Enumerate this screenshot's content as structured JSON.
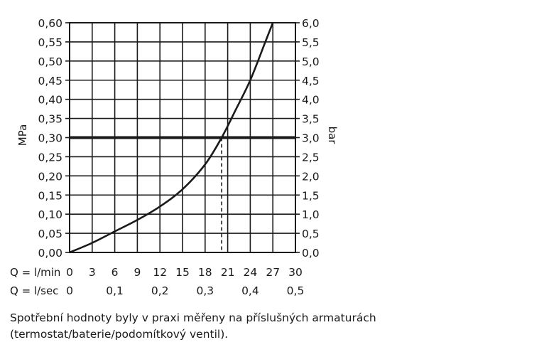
{
  "chart_data": {
    "type": "line",
    "ylabel_left": "MPa",
    "ylabel_right": "bar",
    "ylim": [
      0,
      0.6
    ],
    "left_ticks": [
      "0,00",
      "0,05",
      "0,10",
      "0,15",
      "0,20",
      "0,25",
      "0,30",
      "0,35",
      "0,40",
      "0,45",
      "0,50",
      "0,55",
      "0,60"
    ],
    "right_ticks": [
      "0,0",
      "0,5",
      "1,0",
      "1,5",
      "2,0",
      "2,5",
      "3,0",
      "3,5",
      "4,0",
      "4,5",
      "5,0",
      "5,5",
      "6,0"
    ],
    "xlim": [
      0,
      30
    ],
    "x_axis_1": {
      "label": "Q = l/min",
      "ticks": [
        "0",
        "3",
        "6",
        "9",
        "12",
        "15",
        "18",
        "21",
        "24",
        "27",
        "30"
      ],
      "values": [
        0,
        3,
        6,
        9,
        12,
        15,
        18,
        21,
        24,
        27,
        30
      ]
    },
    "x_axis_2": {
      "label": "Q = l/sec",
      "ticks": [
        "0",
        "0,1",
        "0,2",
        "0,3",
        "0,4",
        "0,5"
      ],
      "values_lpm": [
        0,
        6,
        12,
        18,
        24,
        30
      ]
    },
    "grid": true,
    "series": [
      {
        "x": [
          0,
          3,
          6,
          9,
          12,
          15,
          18,
          20.2,
          22,
          24,
          26,
          27
        ],
        "y": [
          0,
          0.025,
          0.055,
          0.085,
          0.12,
          0.165,
          0.23,
          0.3,
          0.37,
          0.45,
          0.55,
          0.6
        ]
      }
    ],
    "reference_line": {
      "y": 0.3
    },
    "marker_line": {
      "x": 20.2,
      "y": 0.3
    }
  },
  "caption": "Spotřební hodnoty byly v praxi měřeny na příslušných armaturách (termostat/baterie/podomítkový ventil)."
}
